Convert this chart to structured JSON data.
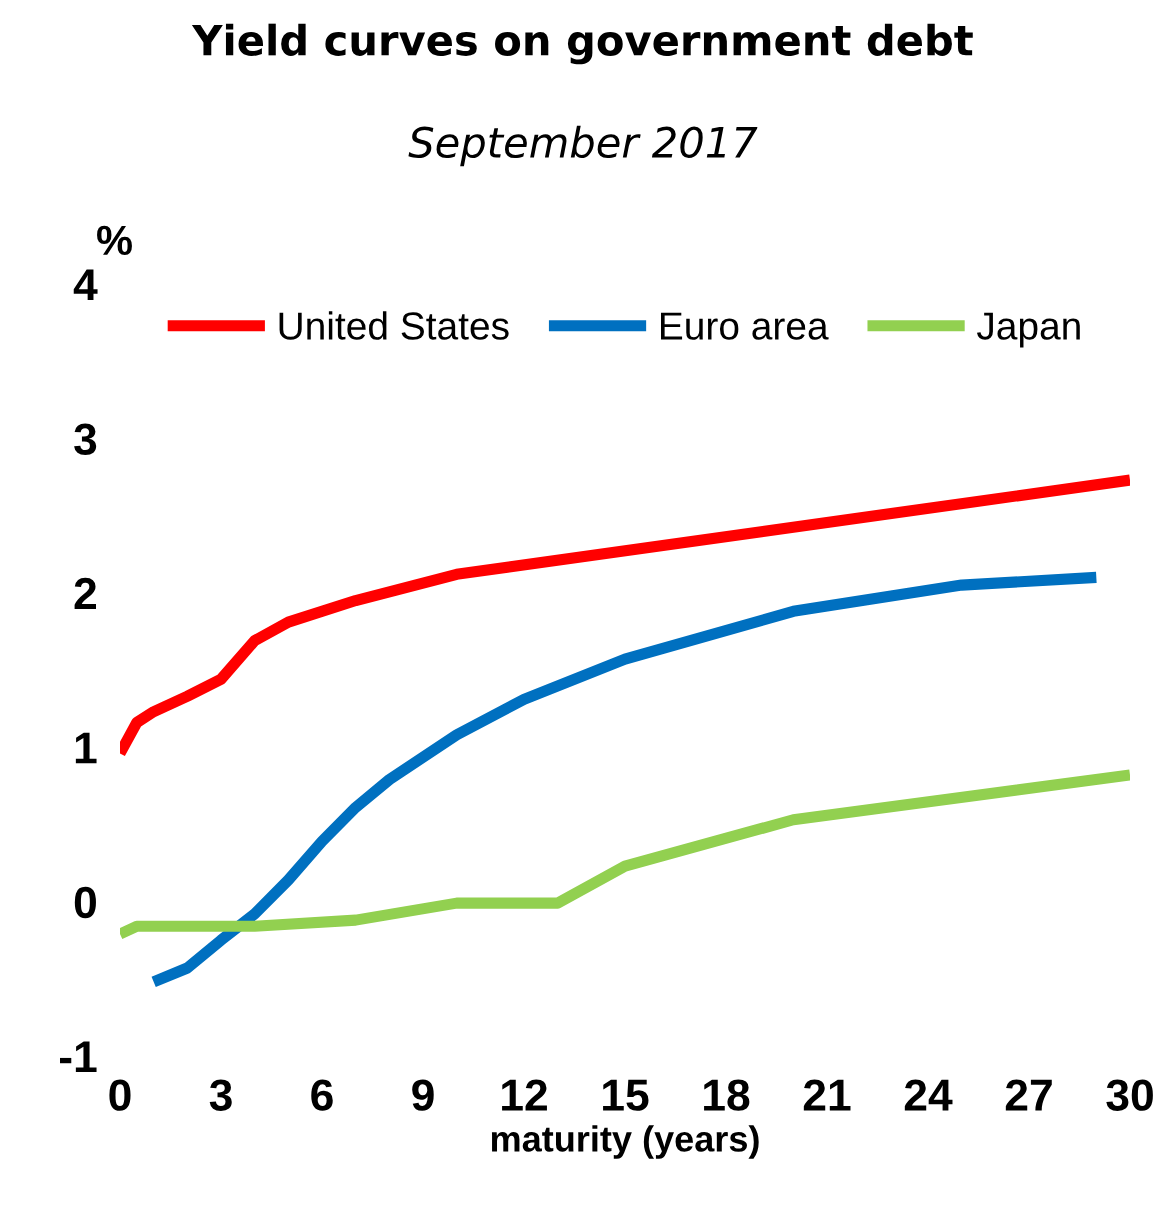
{
  "chart_data": {
    "type": "line",
    "title": "Yield curves on government debt",
    "subtitle": "September 2017",
    "xlabel": "maturity (years)",
    "ylabel": "%",
    "xlim": [
      0,
      30
    ],
    "xticks": [
      0,
      3,
      6,
      9,
      12,
      15,
      18,
      21,
      24,
      27,
      30
    ],
    "ylim": [
      -1,
      4
    ],
    "yticks": [
      -1,
      0,
      1,
      2,
      3,
      4
    ],
    "grid": false,
    "legend": "top",
    "marker": "none",
    "line_style": "solid",
    "series": [
      {
        "name": "United States",
        "color": "#ff0000",
        "x": [
          0,
          0.5,
          1,
          2,
          3,
          4,
          5,
          7,
          10,
          30
        ],
        "values": [
          0.96,
          1.16,
          1.23,
          1.33,
          1.44,
          1.69,
          1.81,
          1.95,
          2.12,
          2.73
        ]
      },
      {
        "name": "Euro area",
        "color": "#0070c0",
        "x": [
          1,
          2,
          3,
          4,
          5,
          6,
          7,
          8,
          10,
          12,
          15,
          20,
          25,
          29
        ],
        "values": [
          -0.52,
          -0.43,
          -0.25,
          -0.08,
          0.14,
          0.39,
          0.61,
          0.79,
          1.08,
          1.31,
          1.57,
          1.88,
          2.05,
          2.1
        ]
      },
      {
        "name": "Japan",
        "color": "#92d050",
        "x": [
          0,
          0.5,
          2,
          4,
          7,
          10,
          13,
          15,
          20,
          30
        ],
        "values": [
          -0.21,
          -0.16,
          -0.16,
          -0.16,
          -0.12,
          -0.01,
          -0.01,
          0.23,
          0.53,
          0.82
        ]
      }
    ]
  }
}
